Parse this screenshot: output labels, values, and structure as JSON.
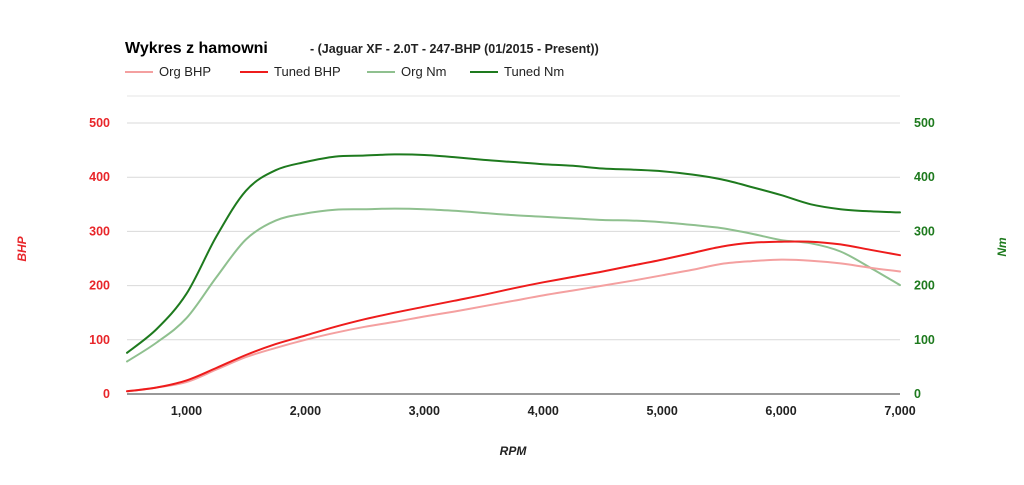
{
  "chart_data": {
    "type": "line",
    "title": "Wykres z hamowni",
    "subtitle": "- (Jaguar XF - 2.0T - 247-BHP (01/2015 - Present))",
    "xlabel": "RPM",
    "ylabel_left": "BHP",
    "ylabel_right": "Nm",
    "xlim": [
      500,
      7000
    ],
    "ylim_left": [
      0,
      500
    ],
    "ylim_right": [
      0,
      500
    ],
    "x_ticks": [
      1000,
      2000,
      3000,
      4000,
      5000,
      6000,
      7000
    ],
    "x_tick_labels": [
      "1,000",
      "2,000",
      "3,000",
      "4,000",
      "5,000",
      "6,000",
      "7,000"
    ],
    "y_ticks": [
      0,
      100,
      200,
      300,
      400,
      500
    ],
    "y_tick_labels": [
      "0",
      "100",
      "200",
      "300",
      "400",
      "500"
    ],
    "grid": true,
    "legend_position": "top-left",
    "series": [
      {
        "name": "Org BHP",
        "axis": "left",
        "color": "#f4a0a0",
        "points": [
          [
            500,
            5
          ],
          [
            750,
            12
          ],
          [
            1000,
            22
          ],
          [
            1250,
            45
          ],
          [
            1500,
            68
          ],
          [
            1750,
            85
          ],
          [
            2000,
            100
          ],
          [
            2250,
            113
          ],
          [
            2500,
            124
          ],
          [
            2750,
            133
          ],
          [
            3000,
            143
          ],
          [
            3250,
            152
          ],
          [
            3500,
            162
          ],
          [
            3750,
            172
          ],
          [
            4000,
            182
          ],
          [
            4250,
            191
          ],
          [
            4500,
            200
          ],
          [
            4750,
            209
          ],
          [
            5000,
            219
          ],
          [
            5250,
            229
          ],
          [
            5500,
            240
          ],
          [
            5750,
            245
          ],
          [
            6000,
            248
          ],
          [
            6250,
            246
          ],
          [
            6500,
            241
          ],
          [
            6750,
            233
          ],
          [
            7000,
            226
          ]
        ]
      },
      {
        "name": "Tuned BHP",
        "axis": "left",
        "color": "#ee1c1c",
        "points": [
          [
            500,
            5
          ],
          [
            750,
            12
          ],
          [
            1000,
            25
          ],
          [
            1250,
            48
          ],
          [
            1500,
            72
          ],
          [
            1750,
            92
          ],
          [
            2000,
            108
          ],
          [
            2250,
            124
          ],
          [
            2500,
            138
          ],
          [
            2750,
            150
          ],
          [
            3000,
            161
          ],
          [
            3250,
            172
          ],
          [
            3500,
            183
          ],
          [
            3750,
            195
          ],
          [
            4000,
            206
          ],
          [
            4250,
            216
          ],
          [
            4500,
            226
          ],
          [
            4750,
            237
          ],
          [
            5000,
            248
          ],
          [
            5250,
            260
          ],
          [
            5500,
            272
          ],
          [
            5750,
            279
          ],
          [
            6000,
            281
          ],
          [
            6250,
            281
          ],
          [
            6500,
            276
          ],
          [
            6750,
            266
          ],
          [
            7000,
            256
          ]
        ]
      },
      {
        "name": "Org Nm",
        "axis": "right",
        "color": "#8fc08f",
        "points": [
          [
            500,
            60
          ],
          [
            750,
            95
          ],
          [
            1000,
            140
          ],
          [
            1250,
            215
          ],
          [
            1500,
            285
          ],
          [
            1750,
            320
          ],
          [
            2000,
            333
          ],
          [
            2250,
            340
          ],
          [
            2500,
            341
          ],
          [
            2750,
            342
          ],
          [
            3000,
            341
          ],
          [
            3250,
            338
          ],
          [
            3500,
            334
          ],
          [
            3750,
            330
          ],
          [
            4000,
            327
          ],
          [
            4250,
            324
          ],
          [
            4500,
            321
          ],
          [
            4750,
            320
          ],
          [
            5000,
            317
          ],
          [
            5250,
            312
          ],
          [
            5500,
            306
          ],
          [
            5750,
            296
          ],
          [
            6000,
            284
          ],
          [
            6250,
            278
          ],
          [
            6500,
            263
          ],
          [
            6750,
            233
          ],
          [
            7000,
            201
          ]
        ]
      },
      {
        "name": "Tuned Nm",
        "axis": "right",
        "color": "#1e7a1e",
        "points": [
          [
            500,
            76
          ],
          [
            750,
            120
          ],
          [
            1000,
            185
          ],
          [
            1250,
            290
          ],
          [
            1500,
            375
          ],
          [
            1750,
            413
          ],
          [
            2000,
            428
          ],
          [
            2250,
            438
          ],
          [
            2500,
            440
          ],
          [
            2750,
            442
          ],
          [
            3000,
            441
          ],
          [
            3250,
            437
          ],
          [
            3500,
            432
          ],
          [
            3750,
            428
          ],
          [
            4000,
            424
          ],
          [
            4250,
            421
          ],
          [
            4500,
            416
          ],
          [
            4750,
            414
          ],
          [
            5000,
            411
          ],
          [
            5250,
            405
          ],
          [
            5500,
            396
          ],
          [
            5750,
            382
          ],
          [
            6000,
            367
          ],
          [
            6250,
            350
          ],
          [
            6500,
            341
          ],
          [
            6750,
            337
          ],
          [
            7000,
            335
          ]
        ]
      }
    ]
  }
}
